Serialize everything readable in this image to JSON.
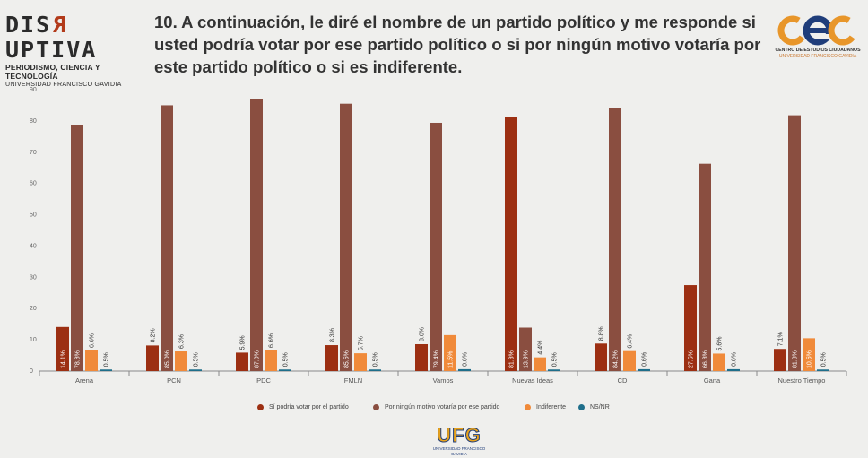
{
  "header": {
    "brand": {
      "prefix": "DIS",
      "reversed": "R",
      "suffix": "UPTIVA"
    },
    "brand_sub1": "PERIODISMO, CIENCIA Y TECNOLOGÍA",
    "brand_sub2": "UNIVERSIDAD FRANCISCO GAVIDIA",
    "title": "10. A continuación, le diré el nombre de un partido político y me responde si usted podría votar por ese partido político o si por ningún motivo votaría por este partido político o si es indiferente.",
    "cec_sub1": "CENTRO DE ESTUDIOS CIUDADANOS",
    "cec_sub2": "UNIVERSIDAD FRANCISCO GAVIDIA"
  },
  "footer": {
    "logo_text": "UFG",
    "logo_sub": "UNIVERSIDAD FRANCISCO GAVIDIA"
  },
  "colors": {
    "s1": "#9c2f12",
    "s2": "#8a4e40",
    "s3": "#f08a3a",
    "s4": "#1f6f8b"
  },
  "chart_data": {
    "type": "bar",
    "categories": [
      "Arena",
      "PCN",
      "PDC",
      "FMLN",
      "Vamos",
      "Nuevas Ideas",
      "CD",
      "Gana",
      "Nuestro Tiempo"
    ],
    "series": [
      {
        "name": "Sí podría votar por el partido",
        "values": [
          14.1,
          8.2,
          5.9,
          8.3,
          8.6,
          81.3,
          8.8,
          27.5,
          7.1
        ],
        "labels": [
          "14.1%",
          "8.2%",
          "5.9%",
          "8.3%",
          "8.6%",
          "81.3%",
          "8.8%",
          "27.5%",
          "7.1%"
        ]
      },
      {
        "name": "Por ningún motivo votaría por ese partido",
        "values": [
          78.8,
          85.0,
          87.0,
          85.5,
          79.4,
          13.9,
          84.2,
          66.3,
          81.8
        ],
        "labels": [
          "78.8%",
          "85.0%",
          "87.0%",
          "85.5%",
          "79.4%",
          "13.9%",
          "84.2%",
          "66.3%",
          "81.8%"
        ]
      },
      {
        "name": "Indiferente",
        "values": [
          6.6,
          6.3,
          6.6,
          5.7,
          11.5,
          4.4,
          6.4,
          5.6,
          10.5
        ],
        "labels": [
          "6.6%",
          "6.3%",
          "6.6%",
          "5.7%",
          "11.5%",
          "4.4%",
          "6.4%",
          "5.6%",
          "10.5%"
        ]
      },
      {
        "name": "NS/NR",
        "values": [
          0.5,
          0.5,
          0.5,
          0.5,
          0.6,
          0.5,
          0.6,
          0.6,
          0.5
        ],
        "labels": [
          "0.5%",
          "0.5%",
          "0.5%",
          "0.5%",
          "0.6%",
          "0.5%",
          "0.6%",
          "0.6%",
          "0.5%"
        ]
      }
    ],
    "ylim": [
      0,
      90
    ],
    "yticks": [
      0,
      10,
      20,
      30,
      40,
      50,
      60,
      70,
      80,
      90
    ],
    "grid": false,
    "legend": "bottom"
  }
}
